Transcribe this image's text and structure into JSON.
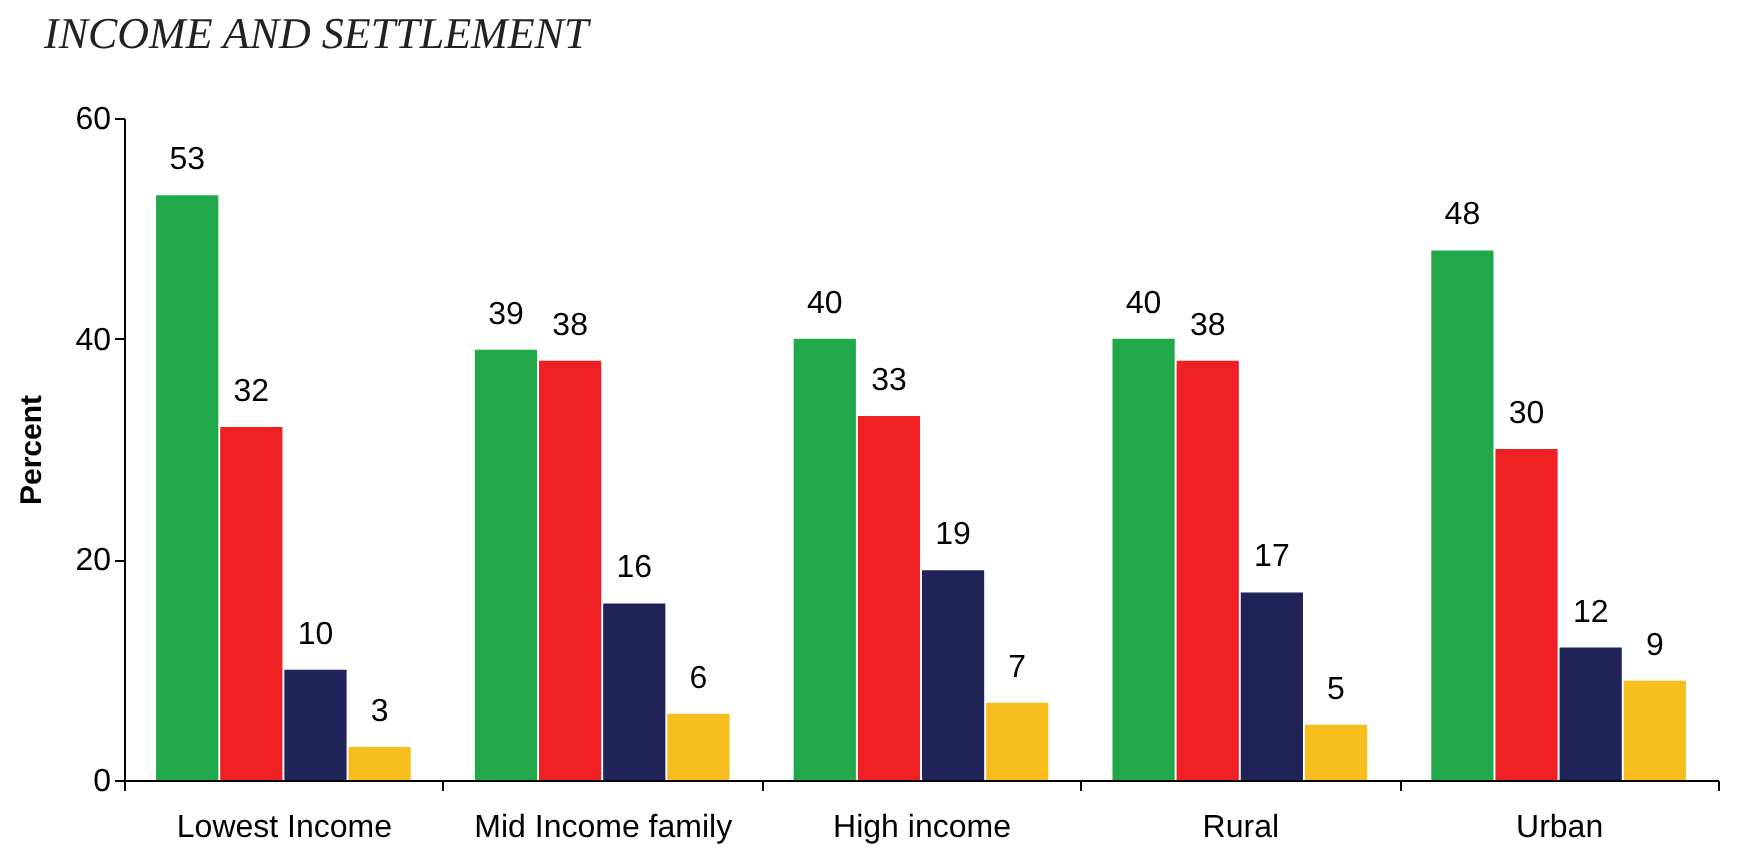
{
  "chart_data": {
    "type": "bar",
    "title": "INCOME AND SETTLEMENT",
    "ylabel": "Percent",
    "categories": [
      "Lowest Income",
      "Mid Income family",
      "High income",
      "Rural",
      "Urban"
    ],
    "series": [
      {
        "color": "#21a84a",
        "values": [
          53,
          39,
          40,
          40,
          48
        ]
      },
      {
        "color": "#ee2024",
        "values": [
          32,
          38,
          33,
          38,
          30
        ]
      },
      {
        "color": "#1f2358",
        "values": [
          10,
          16,
          19,
          17,
          12
        ]
      },
      {
        "color": "#f7bd1d",
        "values": [
          3,
          6,
          7,
          5,
          9
        ]
      }
    ],
    "ylim": [
      0,
      60
    ],
    "yticks": [
      0,
      20,
      40,
      60
    ],
    "grid": false,
    "legend": false,
    "data_labels": true
  }
}
